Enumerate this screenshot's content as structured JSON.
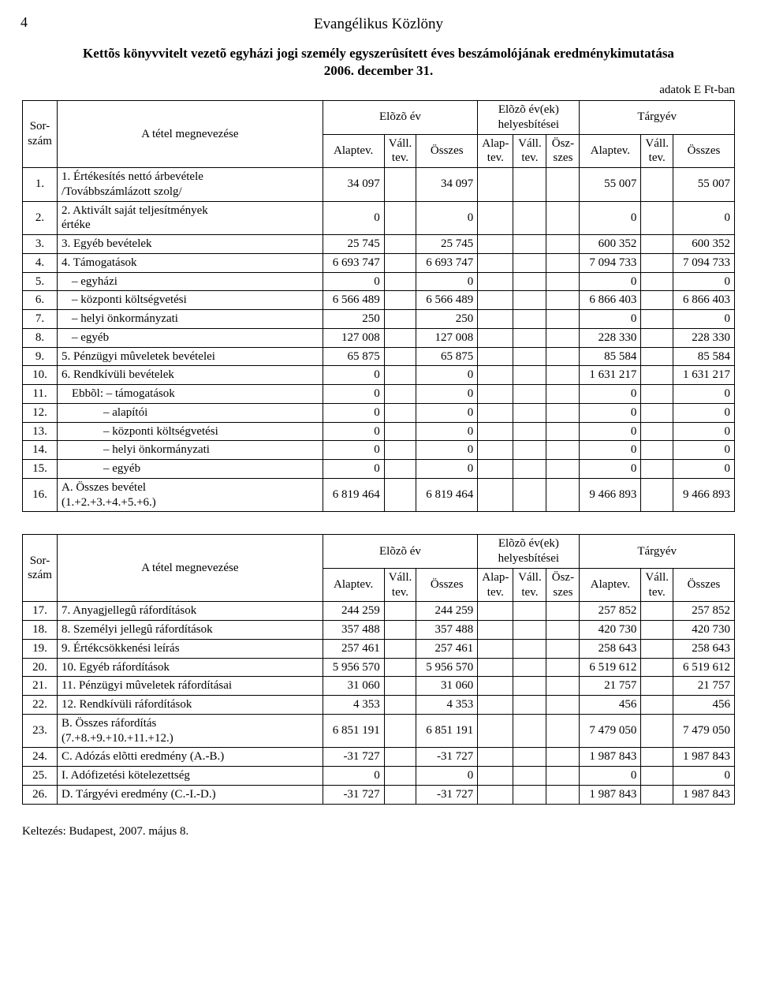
{
  "page_number": "4",
  "journal": "Evangélikus Közlöny",
  "title_line1": "Kettõs könyvvitelt vezetõ egyházi jogi személy egyszerûsített éves beszámolójának eredménykimutatása",
  "title_line2": "2006. december 31.",
  "unit_note": "adatok E Ft-ban",
  "header": {
    "sorszam": "Sor-\nszám",
    "tetel": "A tétel megnevezése",
    "elozo_ev": "Elõzõ év",
    "elozo_evek": "Elõzõ év(ek)\nhelyesbítései",
    "targyev": "Tárgyév",
    "alaptev": "Alaptev.",
    "vall": "Váll.\ntev.",
    "osszes": "Összes",
    "h_alaptev": "Alap-\ntev.",
    "h_vall": "Váll.\ntev.",
    "h_ossz": "Ösz-\nszes"
  },
  "rows1": [
    {
      "num": "1.",
      "name": "1. Értékesítés nettó árbevétele\n/Továbbszámlázott szolg/",
      "p_a": "34 097",
      "p_o": "34 097",
      "t_a": "55 007",
      "t_o": "55 007"
    },
    {
      "num": "2.",
      "name": "2. Aktivált saját teljesítmények\nértéke",
      "p_a": "0",
      "p_o": "0",
      "t_a": "0",
      "t_o": "0"
    },
    {
      "num": "3.",
      "name": "3. Egyéb bevételek",
      "p_a": "25 745",
      "p_o": "25 745",
      "t_a": "600 352",
      "t_o": "600 352"
    },
    {
      "num": "4.",
      "name": "4. Támogatások",
      "p_a": "6 693 747",
      "p_o": "6 693 747",
      "t_a": "7 094 733",
      "t_o": "7 094 733"
    },
    {
      "num": "5.",
      "name": "– egyházi",
      "indent": 1,
      "p_a": "0",
      "p_o": "0",
      "t_a": "0",
      "t_o": "0"
    },
    {
      "num": "6.",
      "name": "– központi költségvetési",
      "indent": 1,
      "p_a": "6 566 489",
      "p_o": "6 566 489",
      "t_a": "6 866 403",
      "t_o": "6 866 403"
    },
    {
      "num": "7.",
      "name": "– helyi önkormányzati",
      "indent": 1,
      "p_a": "250",
      "p_o": "250",
      "t_a": "0",
      "t_o": "0"
    },
    {
      "num": "8.",
      "name": "– egyéb",
      "indent": 1,
      "p_a": "127 008",
      "p_o": "127 008",
      "t_a": "228 330",
      "t_o": "228 330"
    },
    {
      "num": "9.",
      "name": "5. Pénzügyi mûveletek bevételei",
      "p_a": "65 875",
      "p_o": "65 875",
      "t_a": "85 584",
      "t_o": "85 584"
    },
    {
      "num": "10.",
      "name": "6. Rendkívüli bevételek",
      "p_a": "0",
      "p_o": "0",
      "t_a": "1 631 217",
      "t_o": "1 631 217"
    },
    {
      "num": "11.",
      "name": "Ebbõl: – támogatások",
      "indent": 1,
      "p_a": "0",
      "p_o": "0",
      "t_a": "0",
      "t_o": "0"
    },
    {
      "num": "12.",
      "name": "– alapítói",
      "indent": 3,
      "p_a": "0",
      "p_o": "0",
      "t_a": "0",
      "t_o": "0"
    },
    {
      "num": "13.",
      "name": "– központi költségvetési",
      "indent": 3,
      "p_a": "0",
      "p_o": "0",
      "t_a": "0",
      "t_o": "0"
    },
    {
      "num": "14.",
      "name": "– helyi önkormányzati",
      "indent": 3,
      "p_a": "0",
      "p_o": "0",
      "t_a": "0",
      "t_o": "0"
    },
    {
      "num": "15.",
      "name": "– egyéb",
      "indent": 3,
      "p_a": "0",
      "p_o": "0",
      "t_a": "0",
      "t_o": "0"
    },
    {
      "num": "16.",
      "name": "A. Összes bevétel\n(1.+2.+3.+4.+5.+6.)",
      "p_a": "6 819 464",
      "p_o": "6 819 464",
      "t_a": "9 466 893",
      "t_o": "9 466 893"
    }
  ],
  "rows2": [
    {
      "num": "17.",
      "name": "7. Anyagjellegû ráfordítások",
      "p_a": "244 259",
      "p_o": "244 259",
      "t_a": "257 852",
      "t_o": "257 852"
    },
    {
      "num": "18.",
      "name": "8. Személyi jellegû ráfordítások",
      "p_a": "357 488",
      "p_o": "357 488",
      "t_a": "420 730",
      "t_o": "420 730"
    },
    {
      "num": "19.",
      "name": "9. Értékcsökkenési leírás",
      "p_a": "257 461",
      "p_o": "257 461",
      "t_a": "258 643",
      "t_o": "258 643"
    },
    {
      "num": "20.",
      "name": "10. Egyéb ráfordítások",
      "p_a": "5 956 570",
      "p_o": "5 956 570",
      "t_a": "6 519 612",
      "t_o": "6 519 612"
    },
    {
      "num": "21.",
      "name": "11. Pénzügyi mûveletek ráfordításai",
      "p_a": "31 060",
      "p_o": "31 060",
      "t_a": "21 757",
      "t_o": "21 757"
    },
    {
      "num": "22.",
      "name": "12. Rendkívüli ráfordítások",
      "p_a": "4 353",
      "p_o": "4 353",
      "t_a": "456",
      "t_o": "456"
    },
    {
      "num": "23.",
      "name": "B. Összes ráfordítás\n(7.+8.+9.+10.+11.+12.)",
      "p_a": "6 851 191",
      "p_o": "6 851 191",
      "t_a": "7 479 050",
      "t_o": "7 479 050"
    },
    {
      "num": "24.",
      "name": "C. Adózás elõtti eredmény (A.-B.)",
      "p_a": "-31 727",
      "p_o": "-31 727",
      "t_a": "1 987 843",
      "t_o": "1 987 843"
    },
    {
      "num": "25.",
      "name": "I. Adófizetési kötelezettség",
      "p_a": "0",
      "p_o": "0",
      "t_a": "0",
      "t_o": "0"
    },
    {
      "num": "26.",
      "name": "D. Tárgyévi eredmény (C.-I.-D.)",
      "p_a": "-31 727",
      "p_o": "-31 727",
      "t_a": "1 987 843",
      "t_o": "1 987 843"
    }
  ],
  "date_line": "Keltezés: Budapest, 2007. május 8."
}
